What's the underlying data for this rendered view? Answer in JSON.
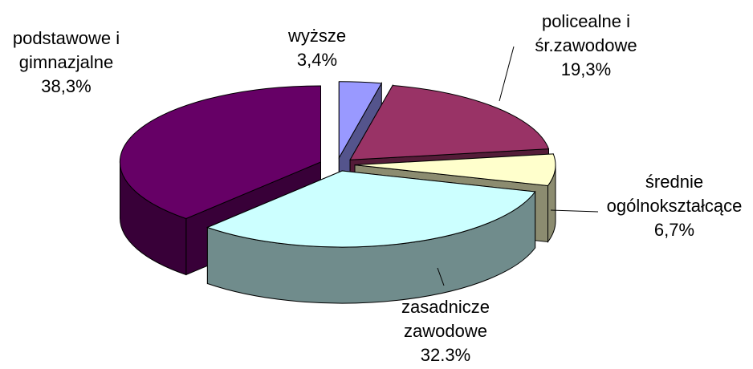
{
  "chart_data": {
    "type": "pie3d",
    "categories": [
      "wyższe",
      "policealne i śr.zawodowe",
      "średnie ogólnokształcące",
      "zasadnicze zawodowe",
      "podstawowe i gimnazjalne"
    ],
    "values": [
      3.4,
      19.3,
      6.7,
      32.3,
      38.3
    ],
    "value_labels": [
      "3,4%",
      "19,3%",
      "6,7%",
      "32.3%",
      "38,3%"
    ],
    "colors": [
      "#9999ff",
      "#993366",
      "#ffffcc",
      "#ccffff",
      "#660066"
    ]
  }
}
